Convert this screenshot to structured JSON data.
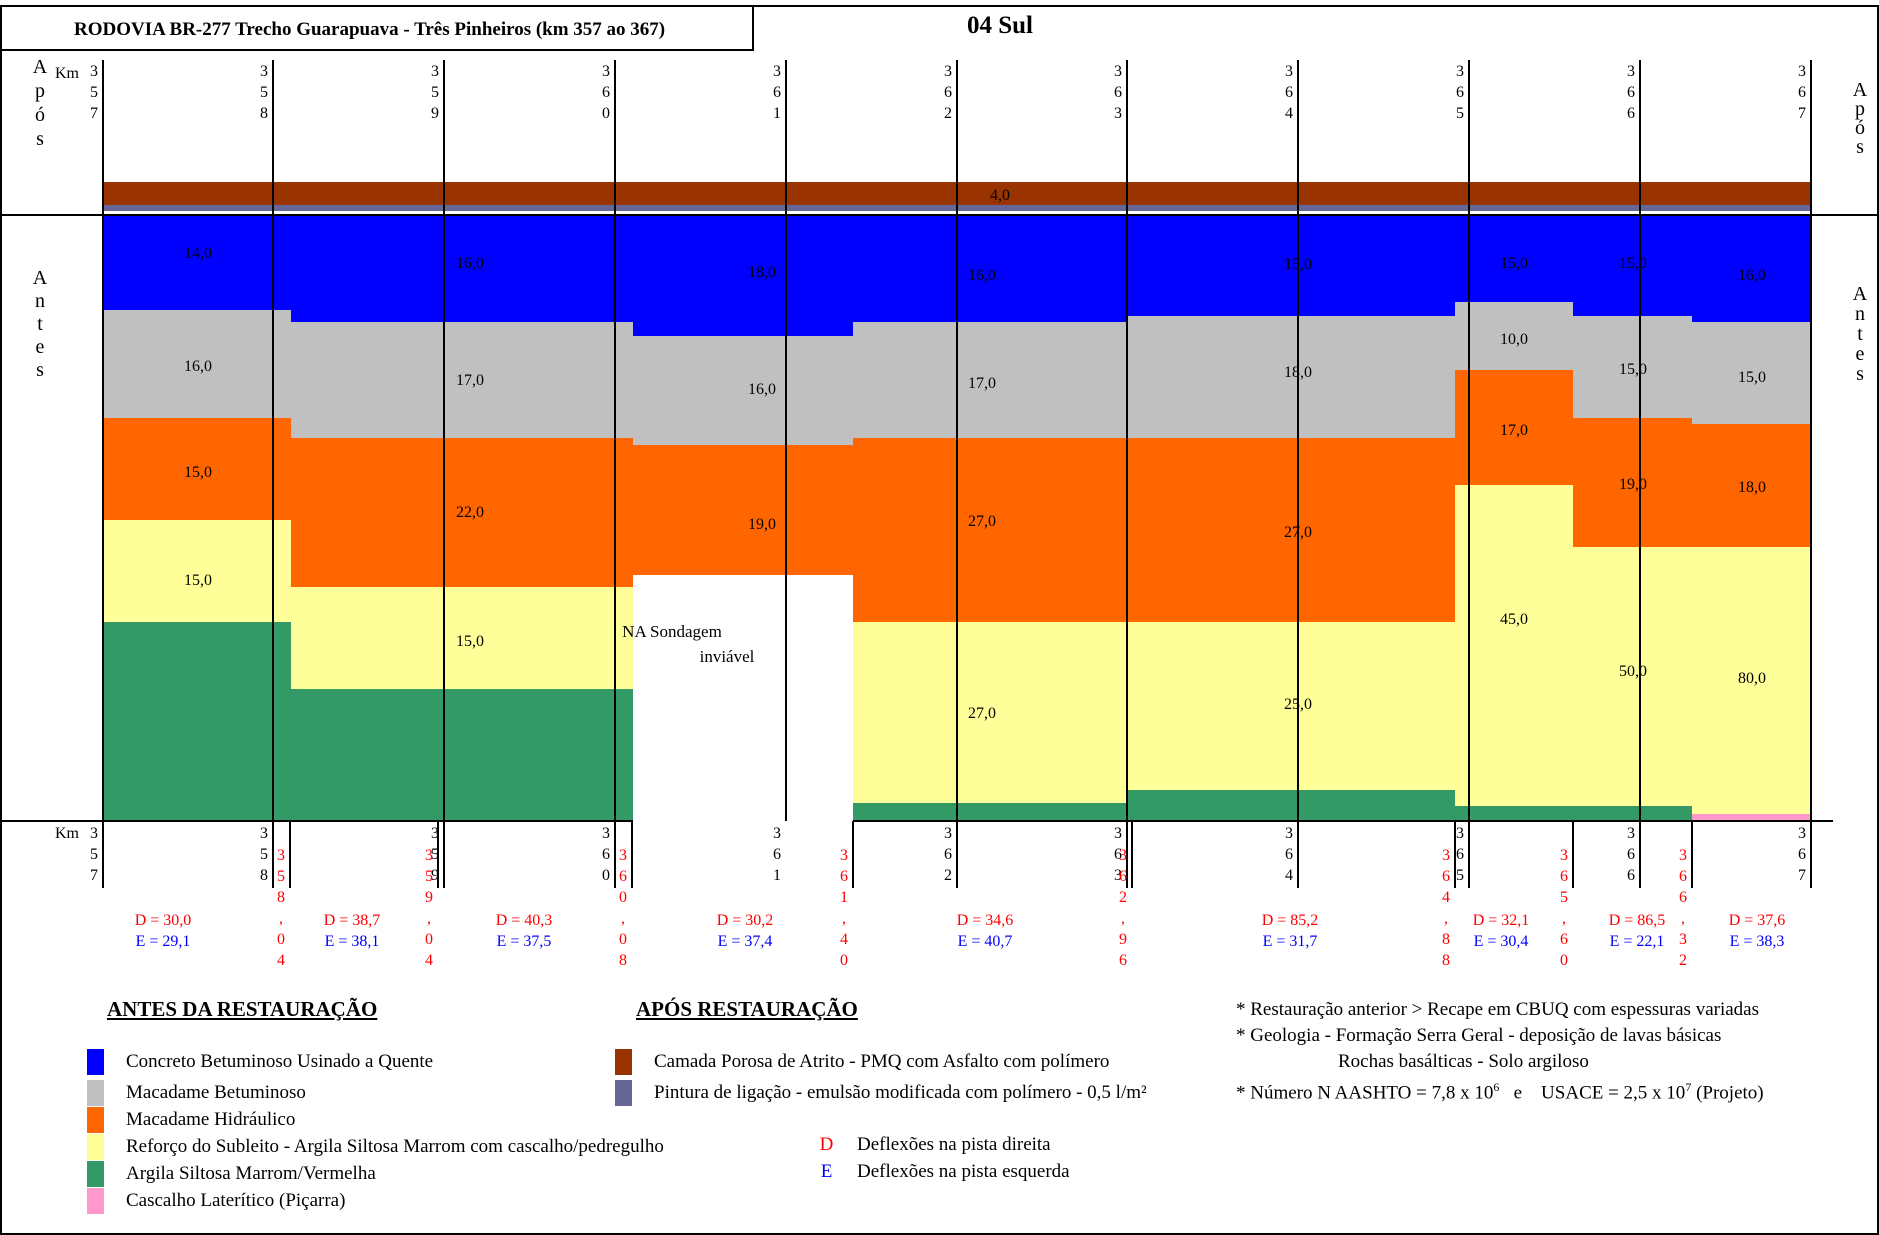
{
  "header": {
    "title": "RODOVIA BR-277 Trecho Guarapuava - Três Pinheiros (km 357 ao 367)",
    "section": "04 Sul"
  },
  "side_labels": {
    "after": "Após",
    "before": "Antes",
    "km": "Km"
  },
  "km_markers": [
    "357",
    "358",
    "359",
    "360",
    "361",
    "362",
    "363",
    "364",
    "365",
    "366",
    "367"
  ],
  "after_layer": {
    "thickness": "4,0"
  },
  "segments": [
    {
      "start": "357",
      "end": "358,04",
      "layers": [
        "14,0",
        "16,0",
        "15,0",
        "15,0",
        ""
      ],
      "deflection_d": "D = 30,0",
      "deflection_e": "E = 29,1"
    },
    {
      "start": "358,04",
      "end": "359,04",
      "layers": [
        "16,0",
        "17,0",
        "22,0",
        "15,0",
        ""
      ],
      "deflection_d": "D = 38,7",
      "deflection_e": "E = 38,1"
    },
    {
      "start": "359,04",
      "end": "360,08",
      "layers": [
        "",
        "",
        "",
        "",
        ""
      ],
      "deflection_d": "D = 40,3",
      "deflection_e": "E = 37,5"
    },
    {
      "start": "360,08",
      "end": "361,40",
      "layers": [
        "18,0",
        "16,0",
        "19,0",
        "",
        ""
      ],
      "note": "NA Sondagem inviável",
      "deflection_d": "D = 30,2",
      "deflection_e": "E = 37,4"
    },
    {
      "start": "361,40",
      "end": "362,96",
      "layers": [
        "16,0",
        "17,0",
        "27,0",
        "27,0",
        ""
      ],
      "deflection_d": "D = 34,6",
      "deflection_e": "E = 40,7"
    },
    {
      "start": "362,96",
      "end": "364,88",
      "layers": [
        "15,0",
        "18,0",
        "27,0",
        "25,0",
        ""
      ],
      "deflection_d": "D = 85,2",
      "deflection_e": "E = 31,7"
    },
    {
      "start": "364,88",
      "end": "365,60",
      "layers": [
        "15,0",
        "10,0",
        "17,0",
        "45,0",
        ""
      ],
      "deflection_d": "D = 32,1",
      "deflection_e": "E = 30,4"
    },
    {
      "start": "365,60",
      "end": "366,32",
      "layers": [
        "15,0",
        "15,0",
        "19,0",
        "50,0",
        ""
      ],
      "deflection_d": "D = 86,5",
      "deflection_e": "E = 22,1"
    },
    {
      "start": "366,32",
      "end": "367",
      "layers": [
        "16,0",
        "15,0",
        "18,0",
        "80,0",
        ""
      ],
      "deflection_d": "D = 37,6",
      "deflection_e": "E = 38,3"
    }
  ],
  "legend": {
    "before_title": "ANTES DA RESTAURAÇÃO",
    "after_title": "APÓS RESTAURAÇÃO",
    "before_items": [
      {
        "label": "Concreto Betuminoso Usinado a Quente",
        "color": "#0000ff"
      },
      {
        "label": "Macadame Betuminoso",
        "color": "#c0c0c0"
      },
      {
        "label": "Macadame Hidráulico",
        "color": "#ff6600"
      },
      {
        "label": "Reforço do Subleito - Argila Siltosa Marrom com cascalho/pedregulho",
        "color": "#ffff99"
      },
      {
        "label": "Argila Siltosa Marrom/Vermelha",
        "color": "#339966"
      },
      {
        "label": "Cascalho Laterítico (Piçarra)",
        "color": "#ff99cc"
      }
    ],
    "after_items": [
      {
        "label": "Camada Porosa de Atrito - PMQ com Asfalto com polímero",
        "color": "#993300"
      },
      {
        "label": "Pintura de ligação - emulsão modificada com polímero - 0,5 l/m²",
        "color": "#666699"
      }
    ],
    "deflection_items": [
      {
        "letter": "D",
        "label": "Deflexões na pista direita",
        "color": "#ff0000"
      },
      {
        "letter": "E",
        "label": "Deflexões na pista esquerda",
        "color": "#0000ff"
      }
    ]
  },
  "notes": {
    "n1": "* Restauração anterior > Recape em CBUQ com espessuras variadas",
    "n2": "* Geologia -  Formação Serra Geral  - deposição de lavas básicas",
    "n3": "Rochas basálticas - Solo argiloso",
    "n4_prefix": "* Número N  AASHTO = 7,8 x 10",
    "n4_exp1": "6",
    "n4_mid": "   e    USACE = 2,5 x 10",
    "n4_exp2": "7",
    "n4_suffix": " (Projeto)"
  }
}
